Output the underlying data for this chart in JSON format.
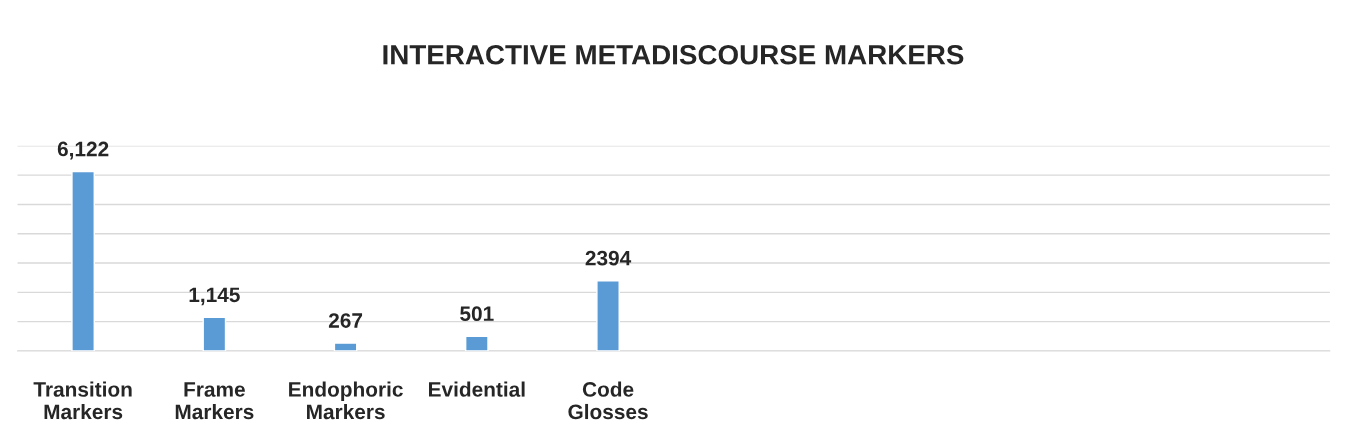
{
  "chart_data": {
    "type": "bar",
    "title": "INTERACTIVE METADISCOURSE MARKERS",
    "categories": [
      "Transition\nMarkers",
      "Frame\nMarkers",
      "Endophoric\nMarkers",
      "Evidential",
      "Code\nGlosses",
      null,
      null,
      null,
      null,
      null
    ],
    "values": [
      6122,
      1145,
      267,
      501,
      2394,
      null,
      null,
      null,
      null,
      null
    ],
    "value_labels": [
      "6,122",
      "1,145",
      "267",
      "501",
      "2394",
      null,
      null,
      null,
      null,
      null
    ],
    "color": "#5b9bd5",
    "ylim": [
      0,
      7000
    ],
    "yticks": [
      {
        "value": 0,
        "label": null
      },
      {
        "value": 1000,
        "label": null
      },
      {
        "value": 2000,
        "label": null
      },
      {
        "value": 3000,
        "label": null
      },
      {
        "value": 4000,
        "label": null
      },
      {
        "value": 5000,
        "label": null
      },
      {
        "value": 6000,
        "label": null
      },
      {
        "value": 7000,
        "label": null
      }
    ],
    "grid": "y",
    "tick_labels": "x",
    "legend": false
  }
}
